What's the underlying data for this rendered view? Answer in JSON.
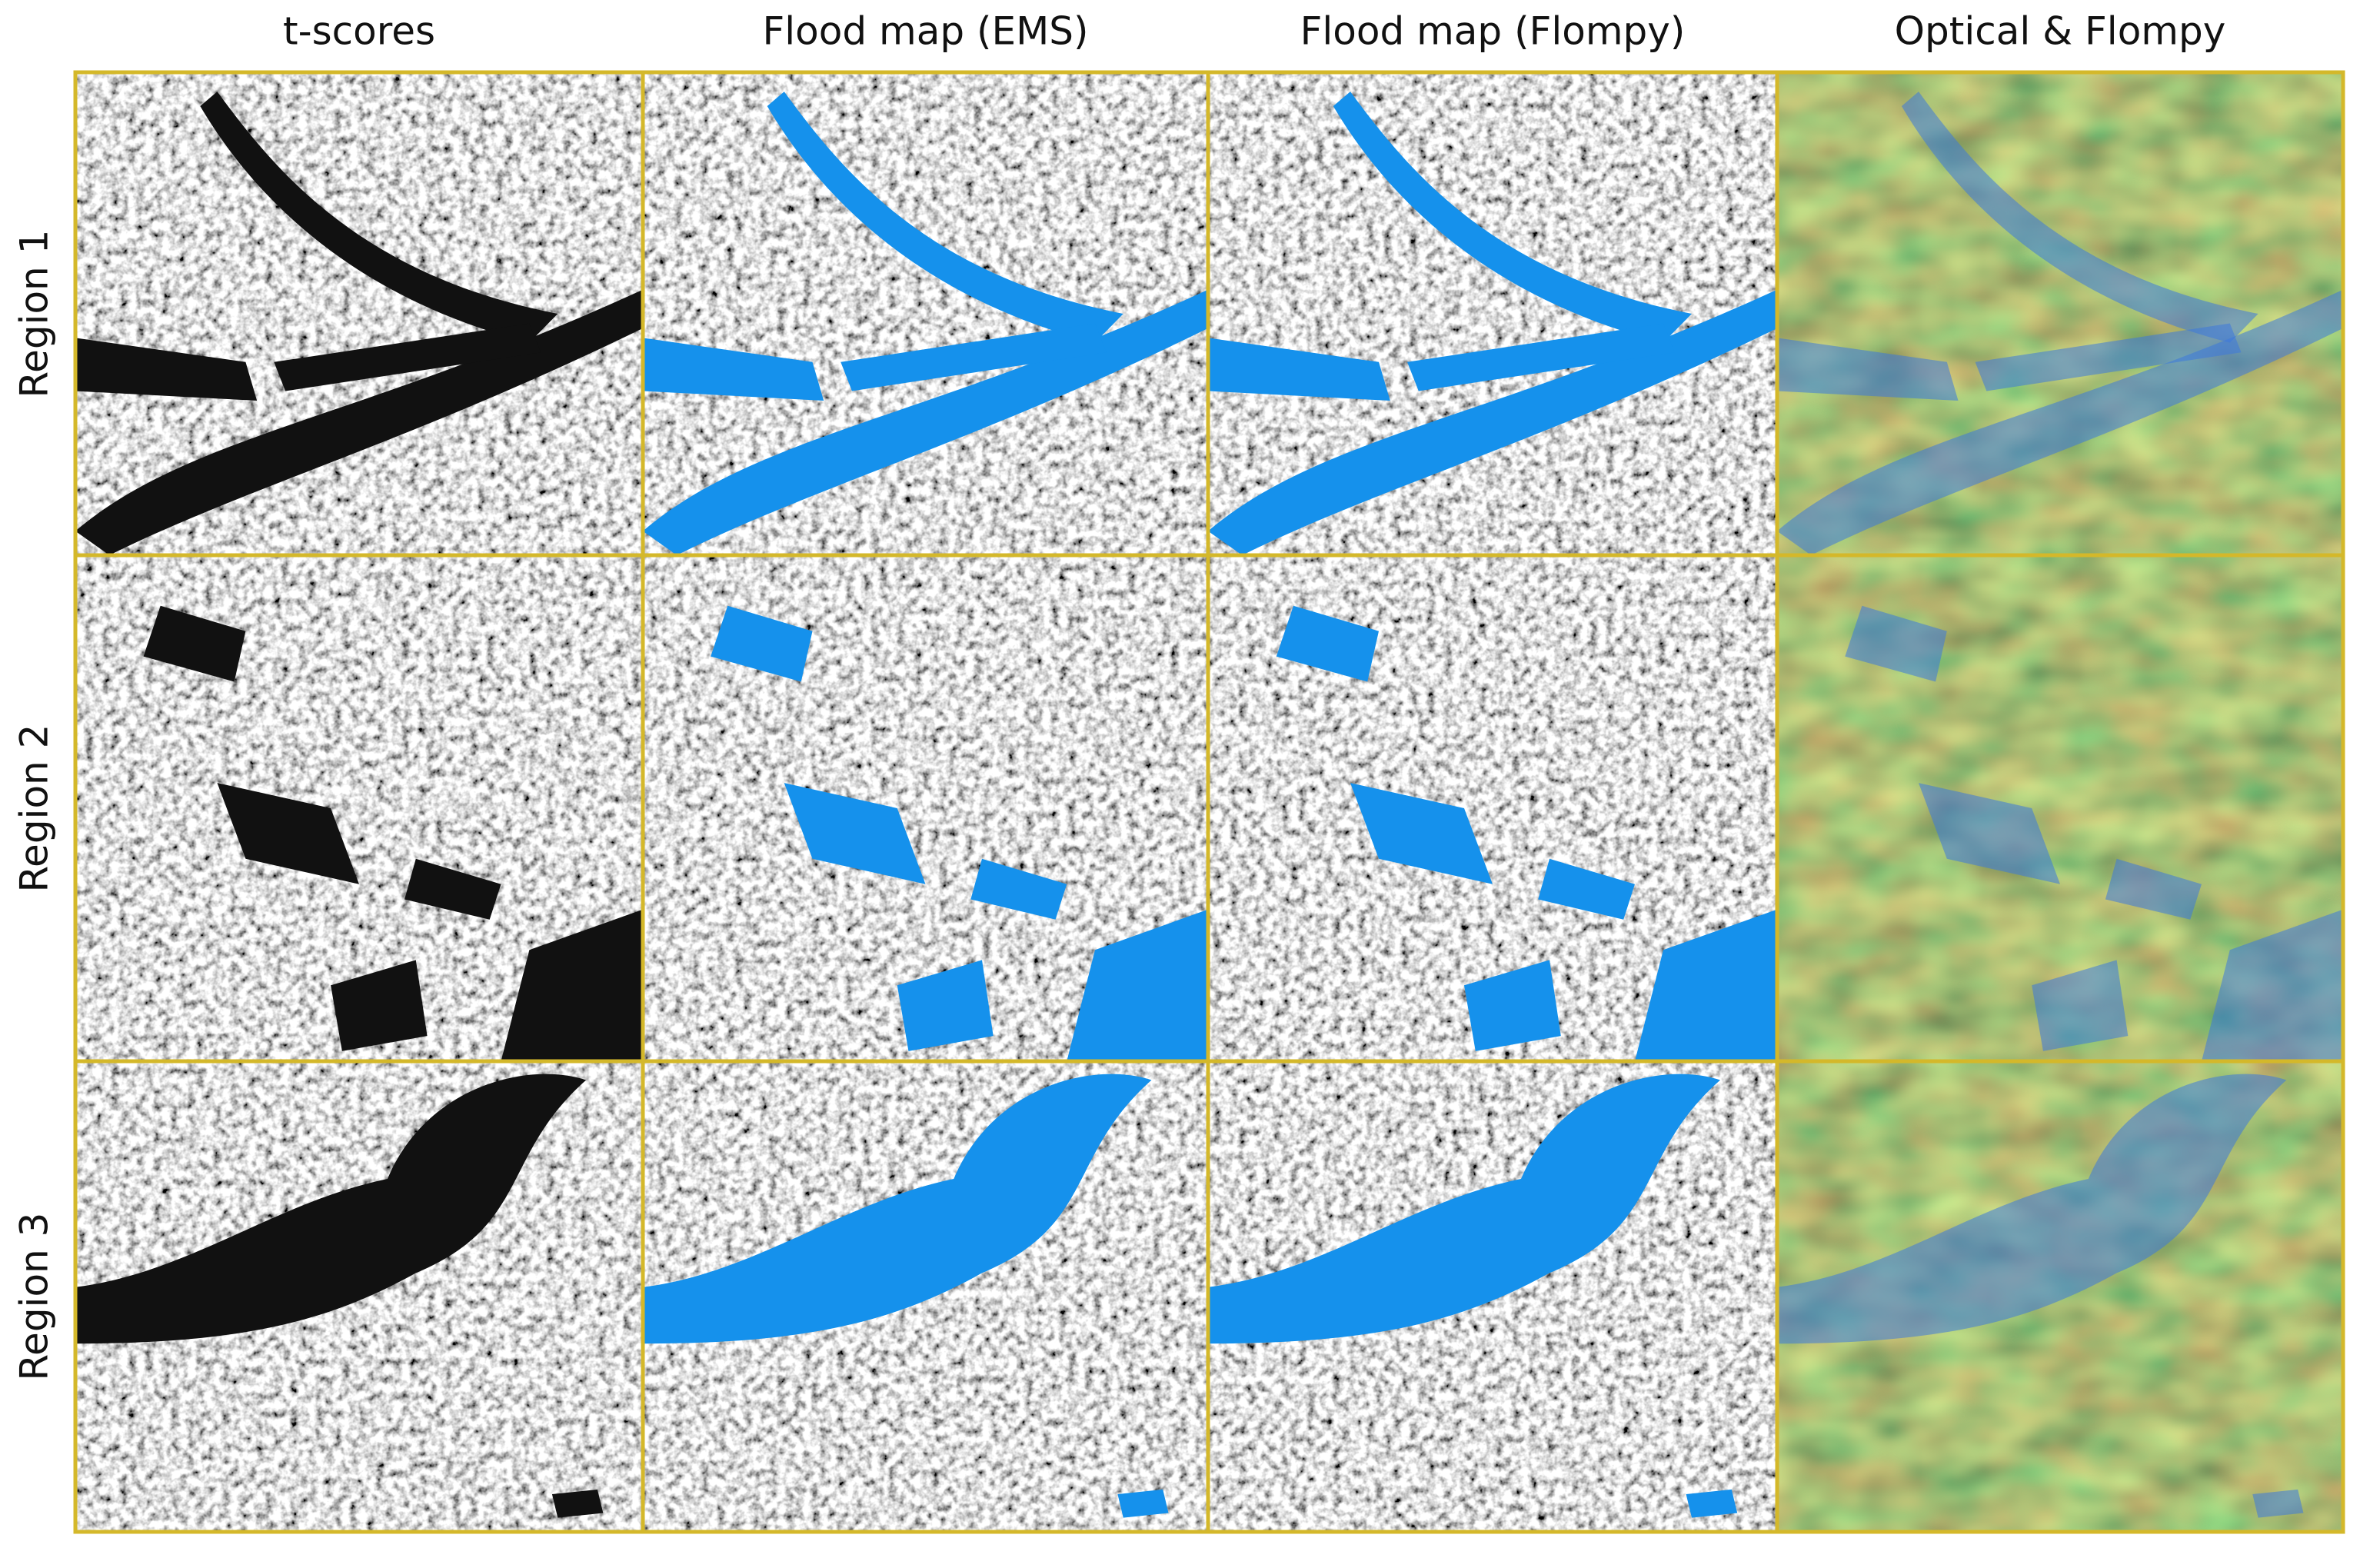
{
  "columns": [
    "t-scores",
    "Flood map (EMS)",
    "Flood map (Flompy)",
    "Optical & Flompy"
  ],
  "rows": [
    "Region 1",
    "Region 2",
    "Region 3"
  ]
}
